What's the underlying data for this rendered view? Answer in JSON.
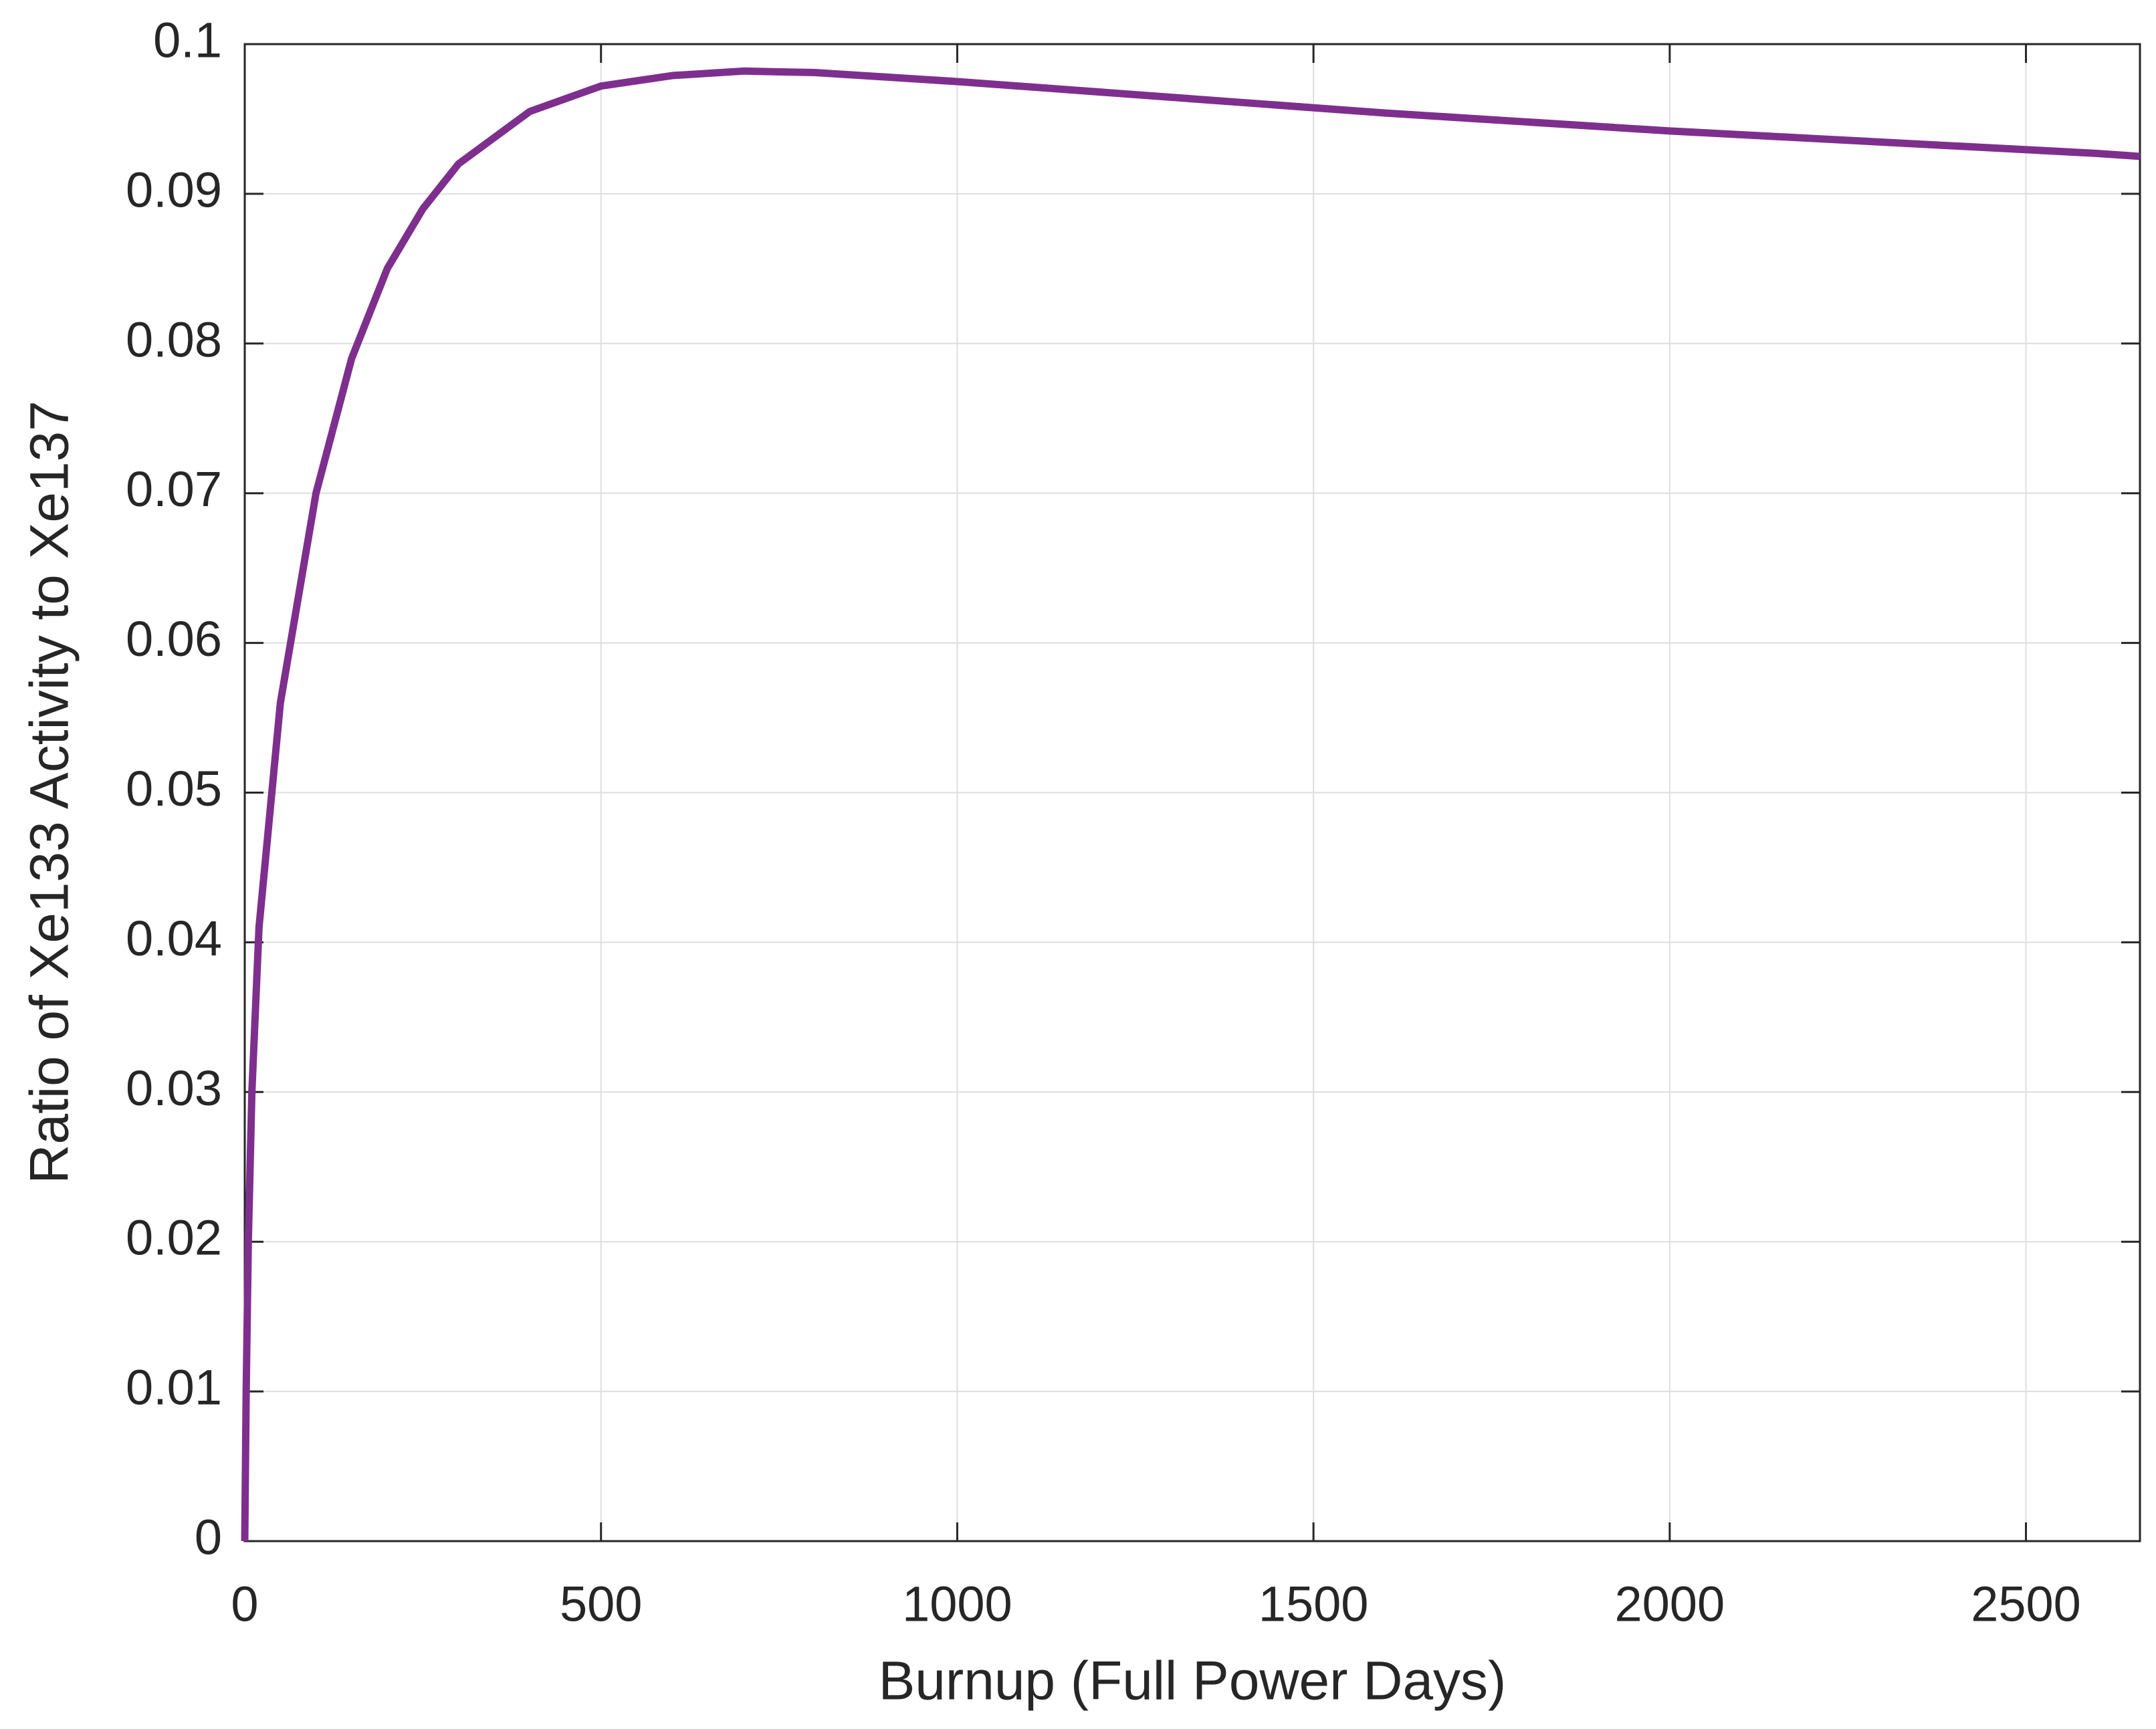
{
  "chart_data": {
    "type": "line",
    "x_label": "Burnup (Full Power Days)",
    "y_label": "Ratio of Xe133 Activity to Xe137",
    "x": [
      0,
      2,
      5,
      10,
      20,
      50,
      100,
      150,
      200,
      250,
      300,
      400,
      500,
      600,
      700,
      800,
      1000,
      1200,
      1400,
      1600,
      1800,
      2000,
      2200,
      2400,
      2600,
      2660
    ],
    "series": [
      {
        "name": "Xe133/Xe137",
        "color": "#7e2f8e",
        "values": [
          0,
          0.01,
          0.02,
          0.03,
          0.041,
          0.056,
          0.07,
          0.079,
          0.085,
          0.089,
          0.092,
          0.0955,
          0.0972,
          0.0979,
          0.0982,
          0.0981,
          0.0975,
          0.0968,
          0.0961,
          0.0954,
          0.0948,
          0.0942,
          0.0937,
          0.0932,
          0.0927,
          0.0925
        ]
      }
    ],
    "xlim": [
      0,
      2660
    ],
    "ylim": [
      0,
      0.1
    ],
    "xticks": [
      0,
      500,
      1000,
      1500,
      2000,
      2500
    ],
    "yticks": [
      0,
      0.01,
      0.02,
      0.03,
      0.04,
      0.05,
      0.06,
      0.07,
      0.08,
      0.09,
      0.1
    ],
    "grid": true
  }
}
